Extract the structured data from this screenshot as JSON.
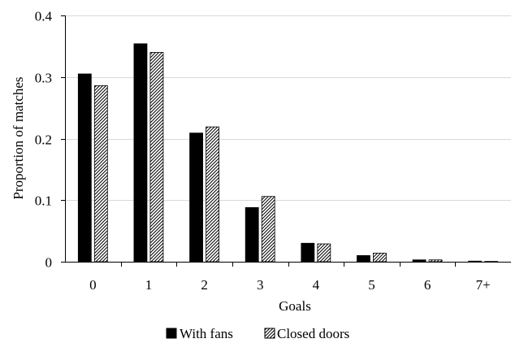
{
  "chart_data": {
    "type": "bar",
    "categories": [
      "0",
      "1",
      "2",
      "3",
      "4",
      "5",
      "6",
      "7+"
    ],
    "series": [
      {
        "name": "With fans",
        "values": [
          0.305,
          0.354,
          0.209,
          0.088,
          0.03,
          0.01,
          0.003,
          0.001
        ],
        "color": "#000000",
        "pattern": "solid"
      },
      {
        "name": "Closed doors",
        "values": [
          0.286,
          0.34,
          0.219,
          0.106,
          0.029,
          0.014,
          0.003,
          0.0005
        ],
        "color": "#000000",
        "pattern": "diagonal-hatch"
      }
    ],
    "title": "",
    "xlabel": "Goals",
    "ylabel": "Proportion of matches",
    "ylim": [
      0,
      0.4
    ],
    "yticks": [
      "0",
      "0.1",
      "0.2",
      "0.3",
      "0.4"
    ],
    "grid": true,
    "legend": "bottom"
  }
}
